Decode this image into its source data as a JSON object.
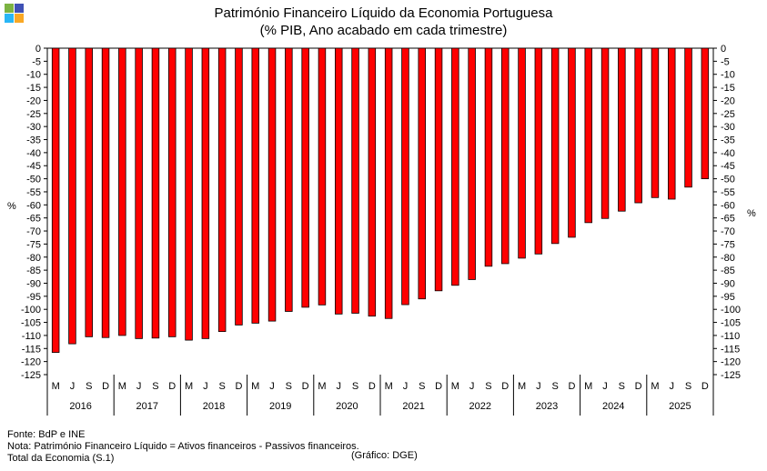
{
  "logo": {
    "colors": [
      "#7cb342",
      "#3f51b5",
      "#29b6f6",
      "#f9a825"
    ]
  },
  "chart_data": {
    "type": "bar",
    "title": "Património Financeiro Líquido da Economia Portuguesa",
    "subtitle": "(% PIB, Ano acabado em cada trimestre)",
    "ylabel_left": "%",
    "ylabel_right": "%",
    "ylim": [
      -125,
      0
    ],
    "yticks": [
      0,
      -5,
      -10,
      -15,
      -20,
      -25,
      -30,
      -35,
      -40,
      -45,
      -50,
      -55,
      -60,
      -65,
      -70,
      -75,
      -80,
      -85,
      -90,
      -95,
      -100,
      -105,
      -110,
      -115,
      -120,
      -125
    ],
    "quarter_labels": [
      "M",
      "J",
      "S",
      "D"
    ],
    "years": [
      "2016",
      "2017",
      "2018",
      "2019",
      "2020",
      "2021",
      "2022",
      "2023",
      "2024",
      "2025"
    ],
    "categories": [
      "M 2016",
      "J 2016",
      "S 2016",
      "D 2016",
      "M 2017",
      "J 2017",
      "S 2017",
      "D 2017",
      "M 2018",
      "J 2018",
      "S 2018",
      "D 2018",
      "M 2019",
      "J 2019",
      "S 2019",
      "D 2019",
      "M 2020",
      "J 2020",
      "S 2020",
      "D 2020",
      "M 2021",
      "J 2021",
      "S 2021",
      "D 2021",
      "M 2022",
      "J 2022",
      "S 2022",
      "D 2022",
      "M 2023",
      "J 2023",
      "S 2023",
      "D 2023",
      "M 2024",
      "J 2024",
      "S 2024",
      "D 2024",
      "M 2025",
      "J 2025",
      "S 2025",
      "D 2025"
    ],
    "values": [
      -116.5,
      -113.2,
      -110.5,
      -110.8,
      -110.0,
      -111.2,
      -111.0,
      -110.5,
      -111.8,
      -111.2,
      -108.5,
      -106.0,
      -105.3,
      -104.5,
      -100.8,
      -99.2,
      -98.3,
      -101.8,
      -101.5,
      -102.6,
      -103.5,
      -98.2,
      -96.0,
      -92.9,
      -90.8,
      -88.6,
      -83.5,
      -82.5,
      -80.4,
      -78.8,
      -74.8,
      -72.4,
      -66.8,
      -65.2,
      -62.4,
      -59.2,
      -57.2,
      -57.8,
      -53.2,
      -50.0
    ],
    "bar_color": "#ff0000",
    "bar_outline": "#000000",
    "grid": false,
    "legend": "none"
  },
  "footnotes": {
    "source": "Fonte: BdP e INE",
    "note": "Nota: Património Financeiro Líquido = Ativos financeiros - Passivos financeiros.",
    "total": "Total da Economia (S.1)",
    "credit": "(Gráfico: DGE)"
  }
}
